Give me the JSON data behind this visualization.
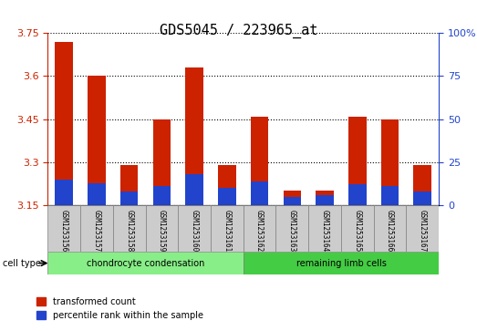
{
  "title": "GDS5045 / 223965_at",
  "samples": [
    "GSM1253156",
    "GSM1253157",
    "GSM1253158",
    "GSM1253159",
    "GSM1253160",
    "GSM1253161",
    "GSM1253162",
    "GSM1253163",
    "GSM1253164",
    "GSM1253165",
    "GSM1253166",
    "GSM1253167"
  ],
  "red_values": [
    3.72,
    3.6,
    3.29,
    3.45,
    3.63,
    3.29,
    3.46,
    3.2,
    3.2,
    3.46,
    3.45,
    3.29
  ],
  "blue_values_pct": [
    15,
    13,
    8,
    11,
    18,
    10,
    14,
    5,
    6,
    12,
    11,
    8
  ],
  "ylim_left": [
    3.15,
    3.75
  ],
  "ylim_right": [
    0,
    100
  ],
  "yticks_left": [
    3.15,
    3.3,
    3.45,
    3.6,
    3.75
  ],
  "yticks_right": [
    0,
    25,
    50,
    75,
    100
  ],
  "ytick_labels_left": [
    "3.15",
    "3.3",
    "3.45",
    "3.6",
    "3.75"
  ],
  "ytick_labels_right": [
    "0",
    "25",
    "50",
    "75",
    "100%"
  ],
  "red_color": "#cc2200",
  "blue_color": "#2244cc",
  "bar_width": 0.55,
  "group1_label": "chondrocyte condensation",
  "group2_label": "remaining limb cells",
  "group1_indices": [
    0,
    1,
    2,
    3,
    4,
    5
  ],
  "group2_indices": [
    6,
    7,
    8,
    9,
    10,
    11
  ],
  "cell_type_label": "cell type",
  "legend1": "transformed count",
  "legend2": "percentile rank within the sample",
  "group1_color": "#88ee88",
  "group2_color": "#44cc44",
  "tick_bg_color": "#cccccc",
  "plot_bg_color": "#ffffff",
  "grid_color": "#000000",
  "title_fontsize": 11,
  "tick_fontsize": 8,
  "label_fontsize": 8,
  "base_value": 3.15
}
